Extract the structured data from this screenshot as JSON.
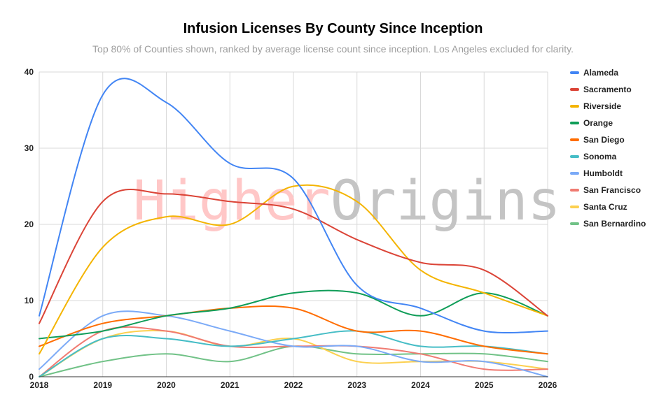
{
  "chart_data": {
    "type": "line",
    "title": "Infusion Licenses By County Since Inception",
    "subtitle": "Top 80% of Counties shown, ranked by average license count since inception. Los Angeles excluded for clarity.",
    "watermark": {
      "part1": "Higher",
      "part2": "Origins",
      "color1": "#ffc7c7",
      "color2": "#c4c4c4"
    },
    "x": [
      "2018",
      "2019",
      "2020",
      "2021",
      "2022",
      "2023",
      "2024",
      "2025",
      "2026"
    ],
    "y_ticks": [
      "0",
      "10",
      "20",
      "30",
      "40"
    ],
    "ylim": [
      0,
      40
    ],
    "grid": true,
    "legend_position": "right",
    "series": [
      {
        "name": "Alameda",
        "color": "#4285f4",
        "values": [
          8,
          37,
          36,
          28,
          26,
          12,
          9,
          6,
          6
        ]
      },
      {
        "name": "Sacramento",
        "color": "#db4437",
        "values": [
          7,
          23,
          24,
          23,
          22,
          18,
          15,
          14,
          8
        ]
      },
      {
        "name": "Riverside",
        "color": "#f4b400",
        "values": [
          3,
          17,
          21,
          20,
          25,
          23,
          14,
          11,
          8
        ]
      },
      {
        "name": "Orange",
        "color": "#0f9d58",
        "values": [
          5,
          6,
          8,
          9,
          11,
          11,
          8,
          11,
          8
        ]
      },
      {
        "name": "San Diego",
        "color": "#ff6d01",
        "values": [
          4,
          7,
          8,
          9,
          9,
          6,
          6,
          4,
          3
        ]
      },
      {
        "name": "Sonoma",
        "color": "#46bdc6",
        "values": [
          0,
          5,
          5,
          4,
          5,
          6,
          4,
          4,
          3
        ]
      },
      {
        "name": "Humboldt",
        "color": "#7baaf7",
        "values": [
          1,
          8,
          8,
          6,
          4,
          4,
          2,
          2,
          0
        ]
      },
      {
        "name": "San Francisco",
        "color": "#f07b72",
        "values": [
          0,
          6,
          6,
          4,
          4,
          4,
          3,
          1,
          1
        ]
      },
      {
        "name": "Santa Cruz",
        "color": "#fcd04f",
        "values": [
          0,
          5,
          6,
          4,
          5,
          2,
          2,
          2,
          1
        ]
      },
      {
        "name": "San Bernardino",
        "color": "#71c287",
        "values": [
          0,
          2,
          3,
          2,
          4,
          3,
          3,
          3,
          2
        ]
      }
    ]
  }
}
